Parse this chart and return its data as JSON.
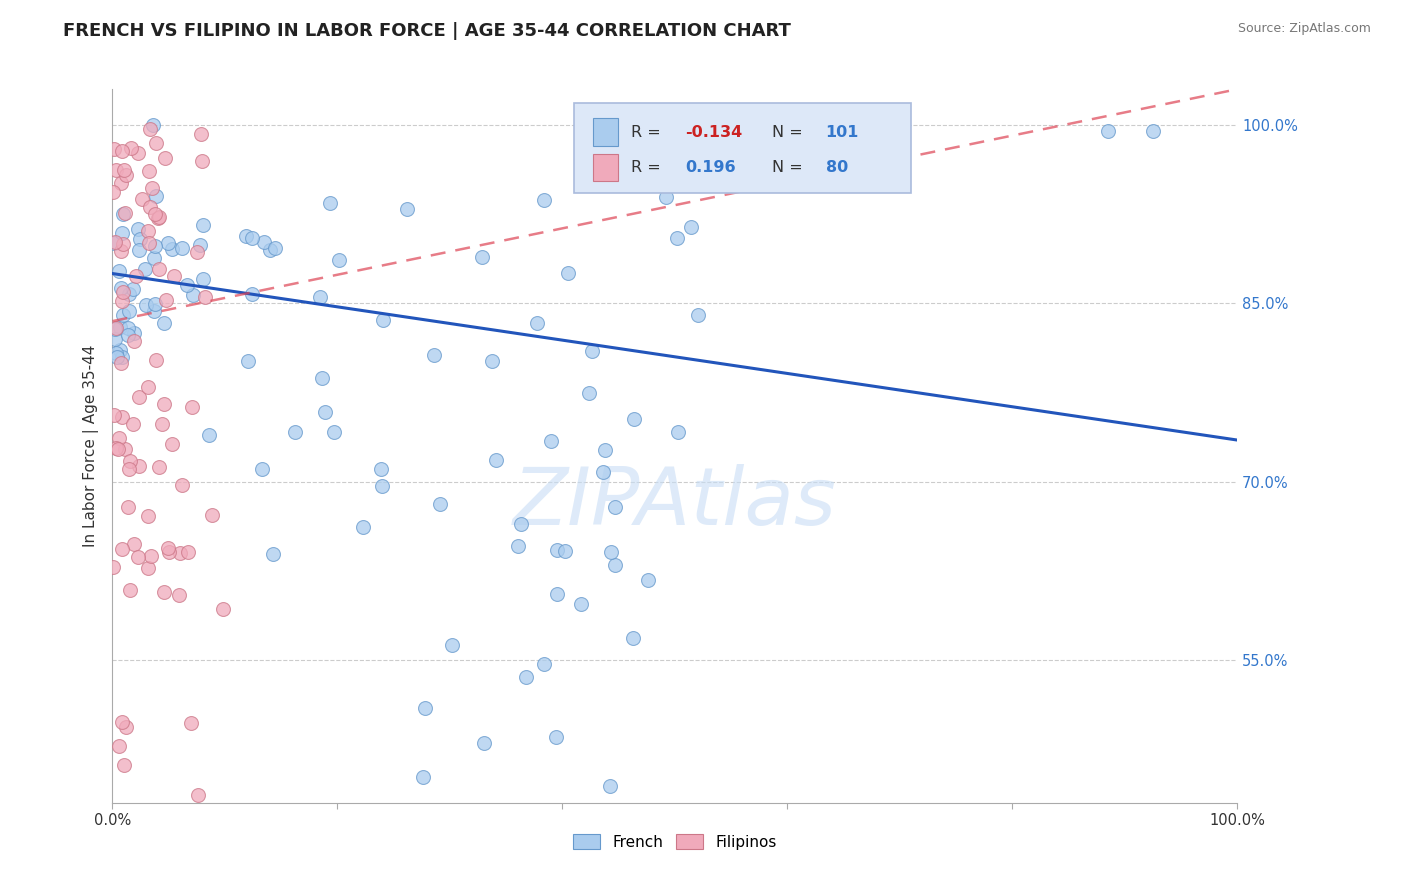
{
  "title": "FRENCH VS FILIPINO IN LABOR FORCE | AGE 35-44 CORRELATION CHART",
  "source": "Source: ZipAtlas.com",
  "ylabel": "In Labor Force | Age 35-44",
  "xlim": [
    0.0,
    1.0
  ],
  "ylim": [
    0.43,
    1.03
  ],
  "yticks": [
    0.55,
    0.7,
    0.85,
    1.0
  ],
  "ytick_labels": [
    "55.0%",
    "70.0%",
    "85.0%",
    "100.0%"
  ],
  "xtick_labels": [
    "0.0%",
    "100.0%"
  ],
  "r_french": -0.134,
  "n_french": 101,
  "r_filipino": 0.196,
  "n_filipino": 80,
  "french_color": "#aaccee",
  "french_edge": "#6699cc",
  "filipino_color": "#f0aabb",
  "filipino_edge": "#cc7788",
  "trend_french_color": "#2255bb",
  "trend_filipino_color": "#dd4455",
  "trend_filipino_dash": [
    6,
    4
  ],
  "watermark_text": "ZIPAtlas",
  "watermark_color": "#c8ddf5",
  "background_color": "#ffffff",
  "legend_box_color": "#dde8f8",
  "legend_box_edge": "#aabbdd",
  "title_fontsize": 13,
  "label_fontsize": 11,
  "tick_fontsize": 10.5,
  "marker_size": 100,
  "seed": 42,
  "french_trend_x0": 0.0,
  "french_trend_y0": 0.875,
  "french_trend_x1": 1.0,
  "french_trend_y1": 0.735,
  "filipino_trend_x0": 0.0,
  "filipino_trend_y0": 0.835,
  "filipino_trend_x1": 1.0,
  "filipino_trend_y1": 1.03
}
